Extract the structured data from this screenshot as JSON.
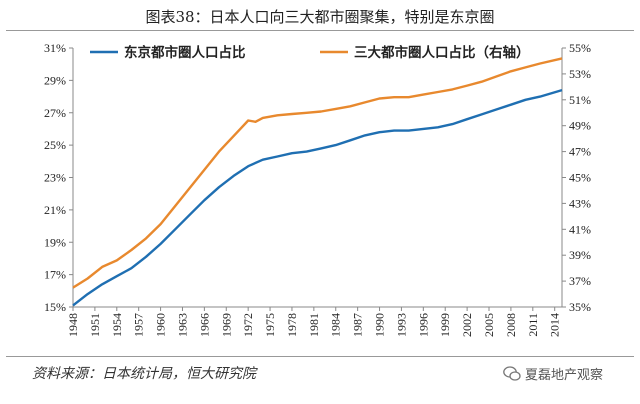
{
  "title": "图表38：日本人口向三大都市圈聚集，特别是东京圈",
  "source": "资料来源：日本统计局，恒大研究院",
  "watermark": "夏磊地产观察",
  "colors": {
    "tokyo": "#1f6fb2",
    "three": "#e8892e"
  },
  "chart_data": {
    "type": "line",
    "x_ticks": [
      1948,
      1951,
      1954,
      1957,
      1960,
      1963,
      1966,
      1969,
      1972,
      1975,
      1978,
      1981,
      1984,
      1987,
      1990,
      1993,
      1996,
      1999,
      2002,
      2005,
      2008,
      2011,
      2014
    ],
    "left_axis": {
      "ylim": [
        15,
        31
      ],
      "ticks": [
        "15%",
        "17%",
        "19%",
        "21%",
        "23%",
        "25%",
        "27%",
        "29%",
        "31%"
      ]
    },
    "right_axis": {
      "ylim": [
        35,
        55
      ],
      "ticks": [
        "35%",
        "37%",
        "39%",
        "41%",
        "43%",
        "45%",
        "47%",
        "49%",
        "51%",
        "53%",
        "55%"
      ]
    },
    "series": [
      {
        "name": "东京都市圈人口占比",
        "axis": "left",
        "color": "#1f6fb2",
        "x": [
          1948,
          1950,
          1952,
          1954,
          1956,
          1958,
          1960,
          1962,
          1964,
          1966,
          1968,
          1970,
          1972,
          1974,
          1976,
          1978,
          1980,
          1982,
          1984,
          1986,
          1988,
          1990,
          1992,
          1994,
          1996,
          1998,
          2000,
          2002,
          2004,
          2006,
          2008,
          2010,
          2012,
          2015
        ],
        "values": [
          15.1,
          15.8,
          16.4,
          16.9,
          17.4,
          18.1,
          18.9,
          19.8,
          20.7,
          21.6,
          22.4,
          23.1,
          23.7,
          24.1,
          24.3,
          24.5,
          24.6,
          24.8,
          25.0,
          25.3,
          25.6,
          25.8,
          25.9,
          25.9,
          26.0,
          26.1,
          26.3,
          26.6,
          26.9,
          27.2,
          27.5,
          27.8,
          28.0,
          28.4
        ]
      },
      {
        "name": "三大都市圈人口占比（右轴）",
        "axis": "right",
        "color": "#e8892e",
        "x": [
          1948,
          1950,
          1952,
          1954,
          1956,
          1958,
          1960,
          1962,
          1964,
          1966,
          1968,
          1970,
          1972,
          1973,
          1974,
          1976,
          1978,
          1980,
          1982,
          1984,
          1986,
          1988,
          1990,
          1992,
          1994,
          1996,
          1998,
          2000,
          2002,
          2004,
          2006,
          2008,
          2010,
          2012,
          2015
        ],
        "values": [
          36.5,
          37.2,
          38.1,
          38.6,
          39.4,
          40.3,
          41.4,
          42.8,
          44.2,
          45.6,
          47.0,
          48.2,
          49.4,
          49.3,
          49.6,
          49.8,
          49.9,
          50.0,
          50.1,
          50.3,
          50.5,
          50.8,
          51.1,
          51.2,
          51.2,
          51.4,
          51.6,
          51.8,
          52.1,
          52.4,
          52.8,
          53.2,
          53.5,
          53.8,
          54.2
        ]
      }
    ],
    "legend_placement": "top",
    "grid": false
  }
}
